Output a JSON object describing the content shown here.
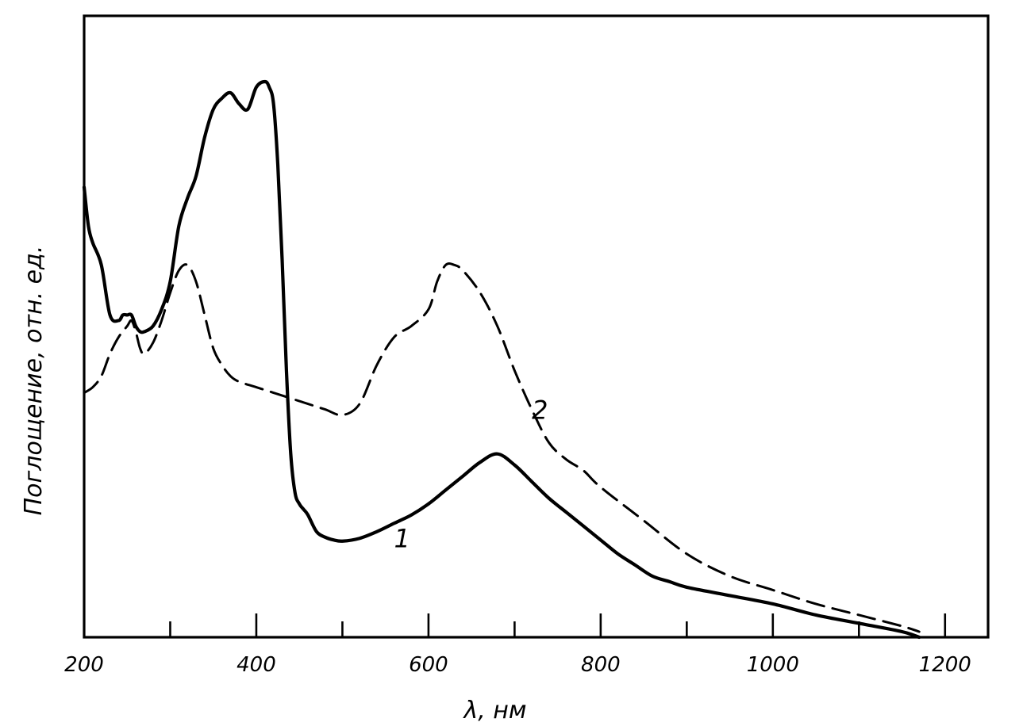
{
  "chart_data": {
    "type": "line",
    "title": "",
    "xlabel": "λ, нм",
    "ylabel": "Поглощение, отн. ед.",
    "xlim": [
      200,
      1250
    ],
    "ylim": [
      0,
      1
    ],
    "grid": false,
    "x_tick_labels": [
      "200",
      "400",
      "600",
      "800",
      "1000",
      "1200"
    ],
    "x_tick_values": [
      200,
      400,
      600,
      800,
      1000,
      1200
    ],
    "x_minor_ticks": [
      300,
      500,
      700,
      900,
      1100
    ],
    "series": [
      {
        "name": "1",
        "style": "solid",
        "x": [
          200,
          205,
          210,
          220,
          230,
          240,
          245,
          250,
          255,
          260,
          265,
          270,
          280,
          290,
          300,
          310,
          320,
          330,
          340,
          350,
          360,
          370,
          380,
          390,
          400,
          410,
          415,
          420,
          425,
          430,
          435,
          440,
          445,
          450,
          455,
          460,
          470,
          480,
          490,
          500,
          520,
          540,
          560,
          580,
          600,
          620,
          640,
          660,
          680,
          700,
          720,
          740,
          760,
          780,
          800,
          820,
          840,
          860,
          880,
          900,
          950,
          1000,
          1050,
          1100,
          1150,
          1170
        ],
        "y": [
          0.81,
          0.74,
          0.71,
          0.67,
          0.58,
          0.57,
          0.58,
          0.58,
          0.58,
          0.56,
          0.55,
          0.55,
          0.56,
          0.59,
          0.64,
          0.74,
          0.79,
          0.83,
          0.9,
          0.95,
          0.97,
          0.98,
          0.96,
          0.95,
          0.99,
          1.0,
          0.99,
          0.96,
          0.85,
          0.68,
          0.48,
          0.33,
          0.26,
          0.24,
          0.23,
          0.22,
          0.19,
          0.18,
          0.175,
          0.173,
          0.178,
          0.19,
          0.205,
          0.22,
          0.24,
          0.265,
          0.29,
          0.315,
          0.33,
          0.31,
          0.28,
          0.25,
          0.225,
          0.2,
          0.175,
          0.15,
          0.13,
          0.11,
          0.1,
          0.09,
          0.075,
          0.06,
          0.04,
          0.025,
          0.01,
          0.0
        ]
      },
      {
        "name": "2",
        "style": "dashed",
        "x": [
          200,
          210,
          220,
          230,
          240,
          250,
          255,
          260,
          265,
          270,
          280,
          290,
          300,
          310,
          320,
          330,
          340,
          350,
          360,
          370,
          380,
          400,
          420,
          440,
          460,
          480,
          500,
          520,
          540,
          560,
          580,
          600,
          610,
          620,
          630,
          640,
          660,
          680,
          700,
          720,
          740,
          760,
          780,
          800,
          850,
          900,
          950,
          1000,
          1050,
          1100,
          1150,
          1170
        ],
        "y": [
          0.44,
          0.45,
          0.47,
          0.51,
          0.54,
          0.56,
          0.57,
          0.55,
          0.52,
          0.51,
          0.53,
          0.57,
          0.62,
          0.66,
          0.67,
          0.64,
          0.58,
          0.52,
          0.49,
          0.47,
          0.46,
          0.45,
          0.44,
          0.43,
          0.42,
          0.41,
          0.4,
          0.42,
          0.49,
          0.54,
          0.56,
          0.59,
          0.64,
          0.67,
          0.67,
          0.66,
          0.62,
          0.56,
          0.48,
          0.41,
          0.35,
          0.32,
          0.3,
          0.27,
          0.21,
          0.15,
          0.11,
          0.085,
          0.06,
          0.04,
          0.02,
          0.01
        ]
      }
    ]
  }
}
